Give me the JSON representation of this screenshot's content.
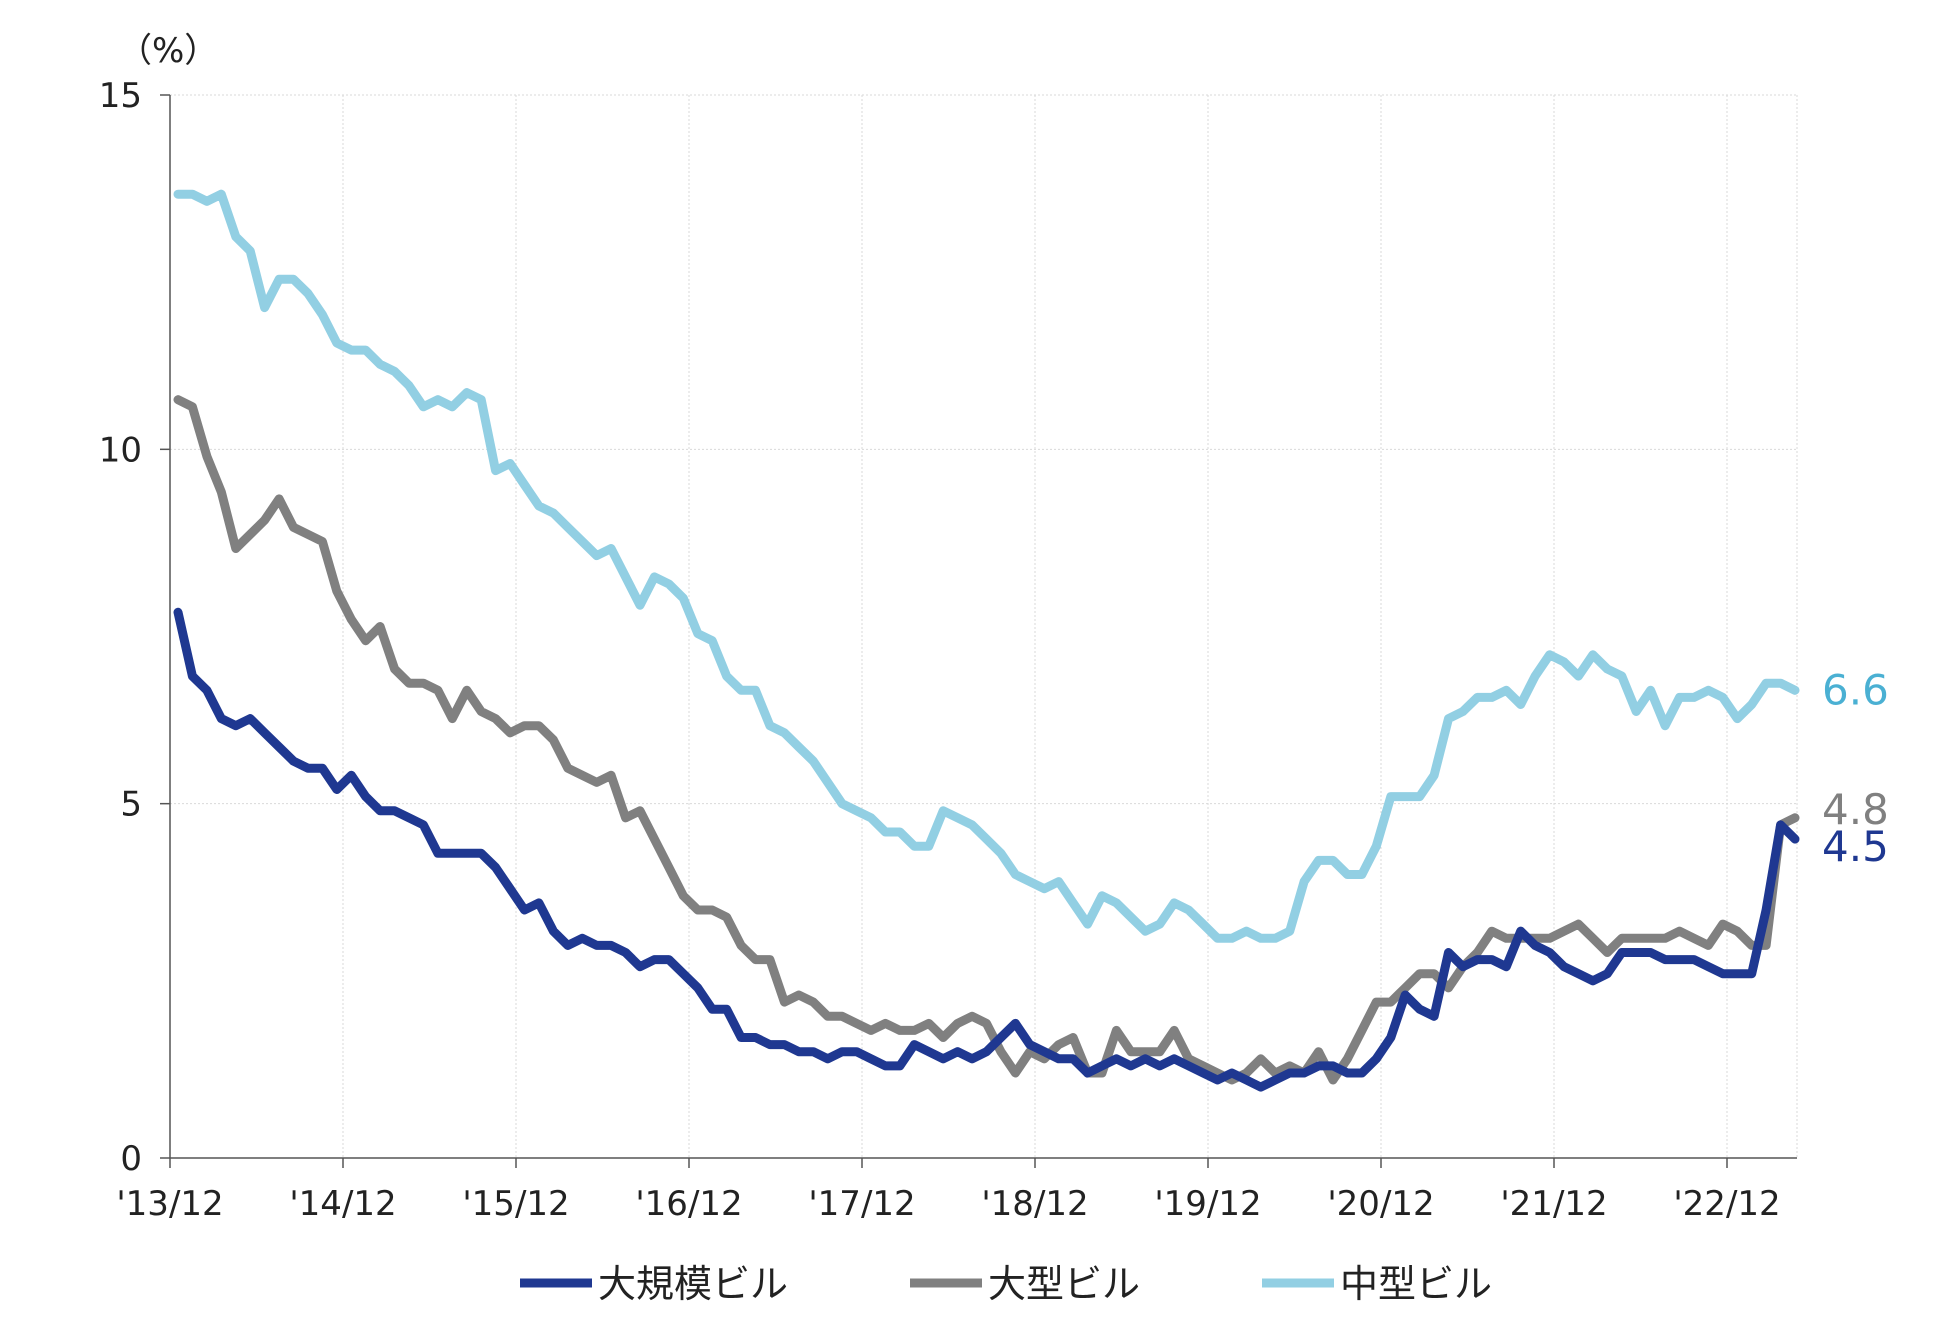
{
  "chart_data": {
    "type": "line",
    "unit_label": "（%）",
    "ylim": [
      0,
      15
    ],
    "y_ticks": [
      "0",
      "5",
      "10",
      "15"
    ],
    "x_tick_labels": [
      "'13/12",
      "'14/12",
      "'15/12",
      "'16/12",
      "'17/12",
      "'18/12",
      "'19/12",
      "'20/12",
      "'21/12",
      "'22/12"
    ],
    "grid": {
      "horizontal": true,
      "vertical": true
    },
    "legend": "bottom",
    "series": [
      {
        "name": "大規模ビル",
        "color": "#1f3891",
        "end_label": "4.5",
        "values": [
          7.7,
          6.8,
          6.6,
          6.2,
          6.1,
          6.2,
          6.0,
          5.8,
          5.6,
          5.5,
          5.5,
          5.2,
          5.4,
          5.1,
          4.9,
          4.9,
          4.8,
          4.7,
          4.3,
          4.3,
          4.3,
          4.3,
          4.1,
          3.8,
          3.5,
          3.6,
          3.2,
          3.0,
          3.1,
          3.0,
          3.0,
          2.9,
          2.7,
          2.8,
          2.8,
          2.6,
          2.4,
          2.1,
          2.1,
          1.7,
          1.7,
          1.6,
          1.6,
          1.5,
          1.5,
          1.4,
          1.5,
          1.5,
          1.4,
          1.3,
          1.3,
          1.6,
          1.5,
          1.4,
          1.5,
          1.4,
          1.5,
          1.7,
          1.9,
          1.6,
          1.5,
          1.4,
          1.4,
          1.2,
          1.3,
          1.4,
          1.3,
          1.4,
          1.3,
          1.4,
          1.3,
          1.2,
          1.1,
          1.2,
          1.1,
          1.0,
          1.1,
          1.2,
          1.2,
          1.3,
          1.3,
          1.2,
          1.2,
          1.4,
          1.7,
          2.3,
          2.1,
          2.0,
          2.9,
          2.7,
          2.8,
          2.8,
          2.7,
          3.2,
          3.0,
          2.9,
          2.7,
          2.6,
          2.5,
          2.6,
          2.9,
          2.9,
          2.9,
          2.8,
          2.8,
          2.8,
          2.7,
          2.6,
          2.6,
          2.6,
          3.5,
          4.7,
          4.5
        ]
      },
      {
        "name": "大型ビル",
        "color": "#808080",
        "end_label": "4.8",
        "values": [
          10.7,
          10.6,
          9.9,
          9.4,
          8.6,
          8.8,
          9.0,
          9.3,
          8.9,
          8.8,
          8.7,
          8.0,
          7.6,
          7.3,
          7.5,
          6.9,
          6.7,
          6.7,
          6.6,
          6.2,
          6.6,
          6.3,
          6.2,
          6.0,
          6.1,
          6.1,
          5.9,
          5.5,
          5.4,
          5.3,
          5.4,
          4.8,
          4.9,
          4.5,
          4.1,
          3.7,
          3.5,
          3.5,
          3.4,
          3.0,
          2.8,
          2.8,
          2.2,
          2.3,
          2.2,
          2.0,
          2.0,
          1.9,
          1.8,
          1.9,
          1.8,
          1.8,
          1.9,
          1.7,
          1.9,
          2.0,
          1.9,
          1.5,
          1.2,
          1.5,
          1.4,
          1.6,
          1.7,
          1.2,
          1.2,
          1.8,
          1.5,
          1.5,
          1.5,
          1.8,
          1.4,
          1.3,
          1.2,
          1.1,
          1.2,
          1.4,
          1.2,
          1.3,
          1.2,
          1.5,
          1.1,
          1.4,
          1.8,
          2.2,
          2.2,
          2.4,
          2.6,
          2.6,
          2.4,
          2.7,
          2.9,
          3.2,
          3.1,
          3.1,
          3.1,
          3.1,
          3.2,
          3.3,
          3.1,
          2.9,
          3.1,
          3.1,
          3.1,
          3.1,
          3.2,
          3.1,
          3.0,
          3.3,
          3.2,
          3.0,
          3.0,
          4.7,
          4.8
        ]
      },
      {
        "name": "中型ビル",
        "color": "#92cfe3",
        "end_label": "6.6",
        "values": [
          13.6,
          13.6,
          13.5,
          13.6,
          13.0,
          12.8,
          12.0,
          12.4,
          12.4,
          12.2,
          11.9,
          11.5,
          11.4,
          11.4,
          11.2,
          11.1,
          10.9,
          10.6,
          10.7,
          10.6,
          10.8,
          10.7,
          9.7,
          9.8,
          9.5,
          9.2,
          9.1,
          8.9,
          8.7,
          8.5,
          8.6,
          8.2,
          7.8,
          8.2,
          8.1,
          7.9,
          7.4,
          7.3,
          6.8,
          6.6,
          6.6,
          6.1,
          6.0,
          5.8,
          5.6,
          5.3,
          5.0,
          4.9,
          4.8,
          4.6,
          4.6,
          4.4,
          4.4,
          4.9,
          4.8,
          4.7,
          4.5,
          4.3,
          4.0,
          3.9,
          3.8,
          3.9,
          3.6,
          3.3,
          3.7,
          3.6,
          3.4,
          3.2,
          3.3,
          3.6,
          3.5,
          3.3,
          3.1,
          3.1,
          3.2,
          3.1,
          3.1,
          3.2,
          3.9,
          4.2,
          4.2,
          4.0,
          4.0,
          4.4,
          5.1,
          5.1,
          5.1,
          5.4,
          6.2,
          6.3,
          6.5,
          6.5,
          6.6,
          6.4,
          6.8,
          7.1,
          7.0,
          6.8,
          7.1,
          6.9,
          6.8,
          6.3,
          6.6,
          6.1,
          6.5,
          6.5,
          6.6,
          6.5,
          6.2,
          6.4,
          6.7,
          6.7,
          6.6
        ]
      }
    ]
  }
}
